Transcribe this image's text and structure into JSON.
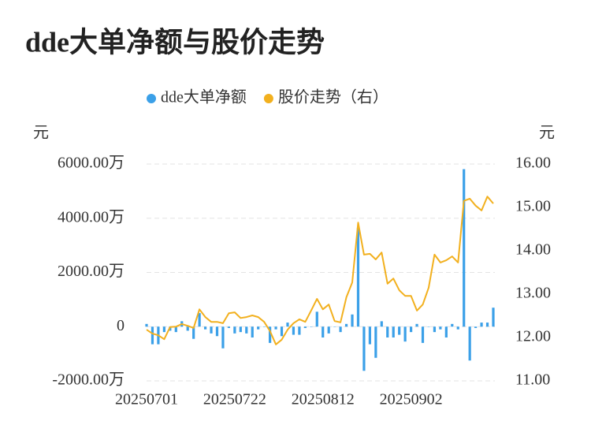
{
  "chart_data": {
    "type": "bar-line",
    "title": "dde大单净额与股价走势",
    "y_label": "元",
    "y2_label": "元",
    "categories": [
      "20250701",
      null,
      null,
      null,
      null,
      null,
      null,
      null,
      null,
      null,
      null,
      null,
      null,
      null,
      null,
      "20250722",
      null,
      null,
      null,
      null,
      null,
      null,
      null,
      null,
      null,
      null,
      null,
      null,
      null,
      null,
      "20250812",
      null,
      null,
      null,
      null,
      null,
      null,
      null,
      null,
      null,
      null,
      null,
      null,
      null,
      null,
      "20250902",
      null,
      null,
      null,
      null,
      null,
      null,
      null,
      null,
      null,
      null,
      null,
      null,
      null,
      null
    ],
    "series": [
      {
        "name": "dde大单净额",
        "type": "bar",
        "color": "#3ba0e8",
        "values": [
          100,
          -650,
          -650,
          -200,
          -150,
          -200,
          200,
          -150,
          -450,
          500,
          -100,
          -250,
          -350,
          -800,
          -50,
          -250,
          -200,
          -250,
          -400,
          -100,
          0,
          -600,
          -100,
          -350,
          150,
          -300,
          -300,
          -50,
          0,
          550,
          -400,
          -250,
          0,
          -200,
          100,
          450,
          3650,
          -1630,
          -650,
          -1150,
          200,
          -400,
          -400,
          -300,
          -550,
          -200,
          100,
          -600,
          0,
          -200,
          -100,
          -400,
          100,
          -100,
          5810,
          -1250,
          -50,
          150,
          150,
          700
        ]
      },
      {
        "name": "股价走势（右）",
        "type": "line",
        "axis": "y2",
        "color": "#f2b01e",
        "values": [
          12.18,
          12.09,
          12.05,
          11.96,
          12.24,
          12.25,
          12.31,
          12.27,
          12.22,
          12.65,
          12.47,
          12.36,
          12.36,
          12.33,
          12.56,
          12.58,
          12.45,
          12.47,
          12.51,
          12.47,
          12.36,
          12.15,
          11.84,
          11.95,
          12.18,
          12.33,
          12.42,
          12.36,
          12.62,
          12.89,
          12.65,
          12.76,
          12.38,
          12.35,
          12.93,
          13.27,
          14.65,
          13.91,
          13.93,
          13.8,
          13.96,
          13.24,
          13.36,
          13.09,
          12.96,
          12.96,
          12.62,
          12.76,
          13.15,
          13.91,
          13.73,
          13.78,
          13.87,
          13.73,
          15.15,
          15.2,
          15.04,
          14.93,
          15.25,
          15.09
        ]
      }
    ],
    "ylim": [
      -2000,
      6000
    ],
    "yticks": [
      {
        "value": -2000,
        "label": "-2000.00万"
      },
      0,
      {
        "value": 2000,
        "label": "2000.00万"
      },
      {
        "value": 4000,
        "label": "4000.00万"
      },
      {
        "value": 6000,
        "label": "6000.00万"
      }
    ],
    "y2lim": [
      11,
      16
    ],
    "y2ticks": [
      {
        "value": 11,
        "label": "11.00"
      },
      {
        "value": 12,
        "label": "12.00"
      },
      {
        "value": 13,
        "label": "13.00"
      },
      {
        "value": 14,
        "label": "14.00"
      },
      {
        "value": 15,
        "label": "15.00"
      },
      {
        "value": 16,
        "label": "16.00"
      }
    ],
    "grid": true,
    "legend": "top"
  }
}
